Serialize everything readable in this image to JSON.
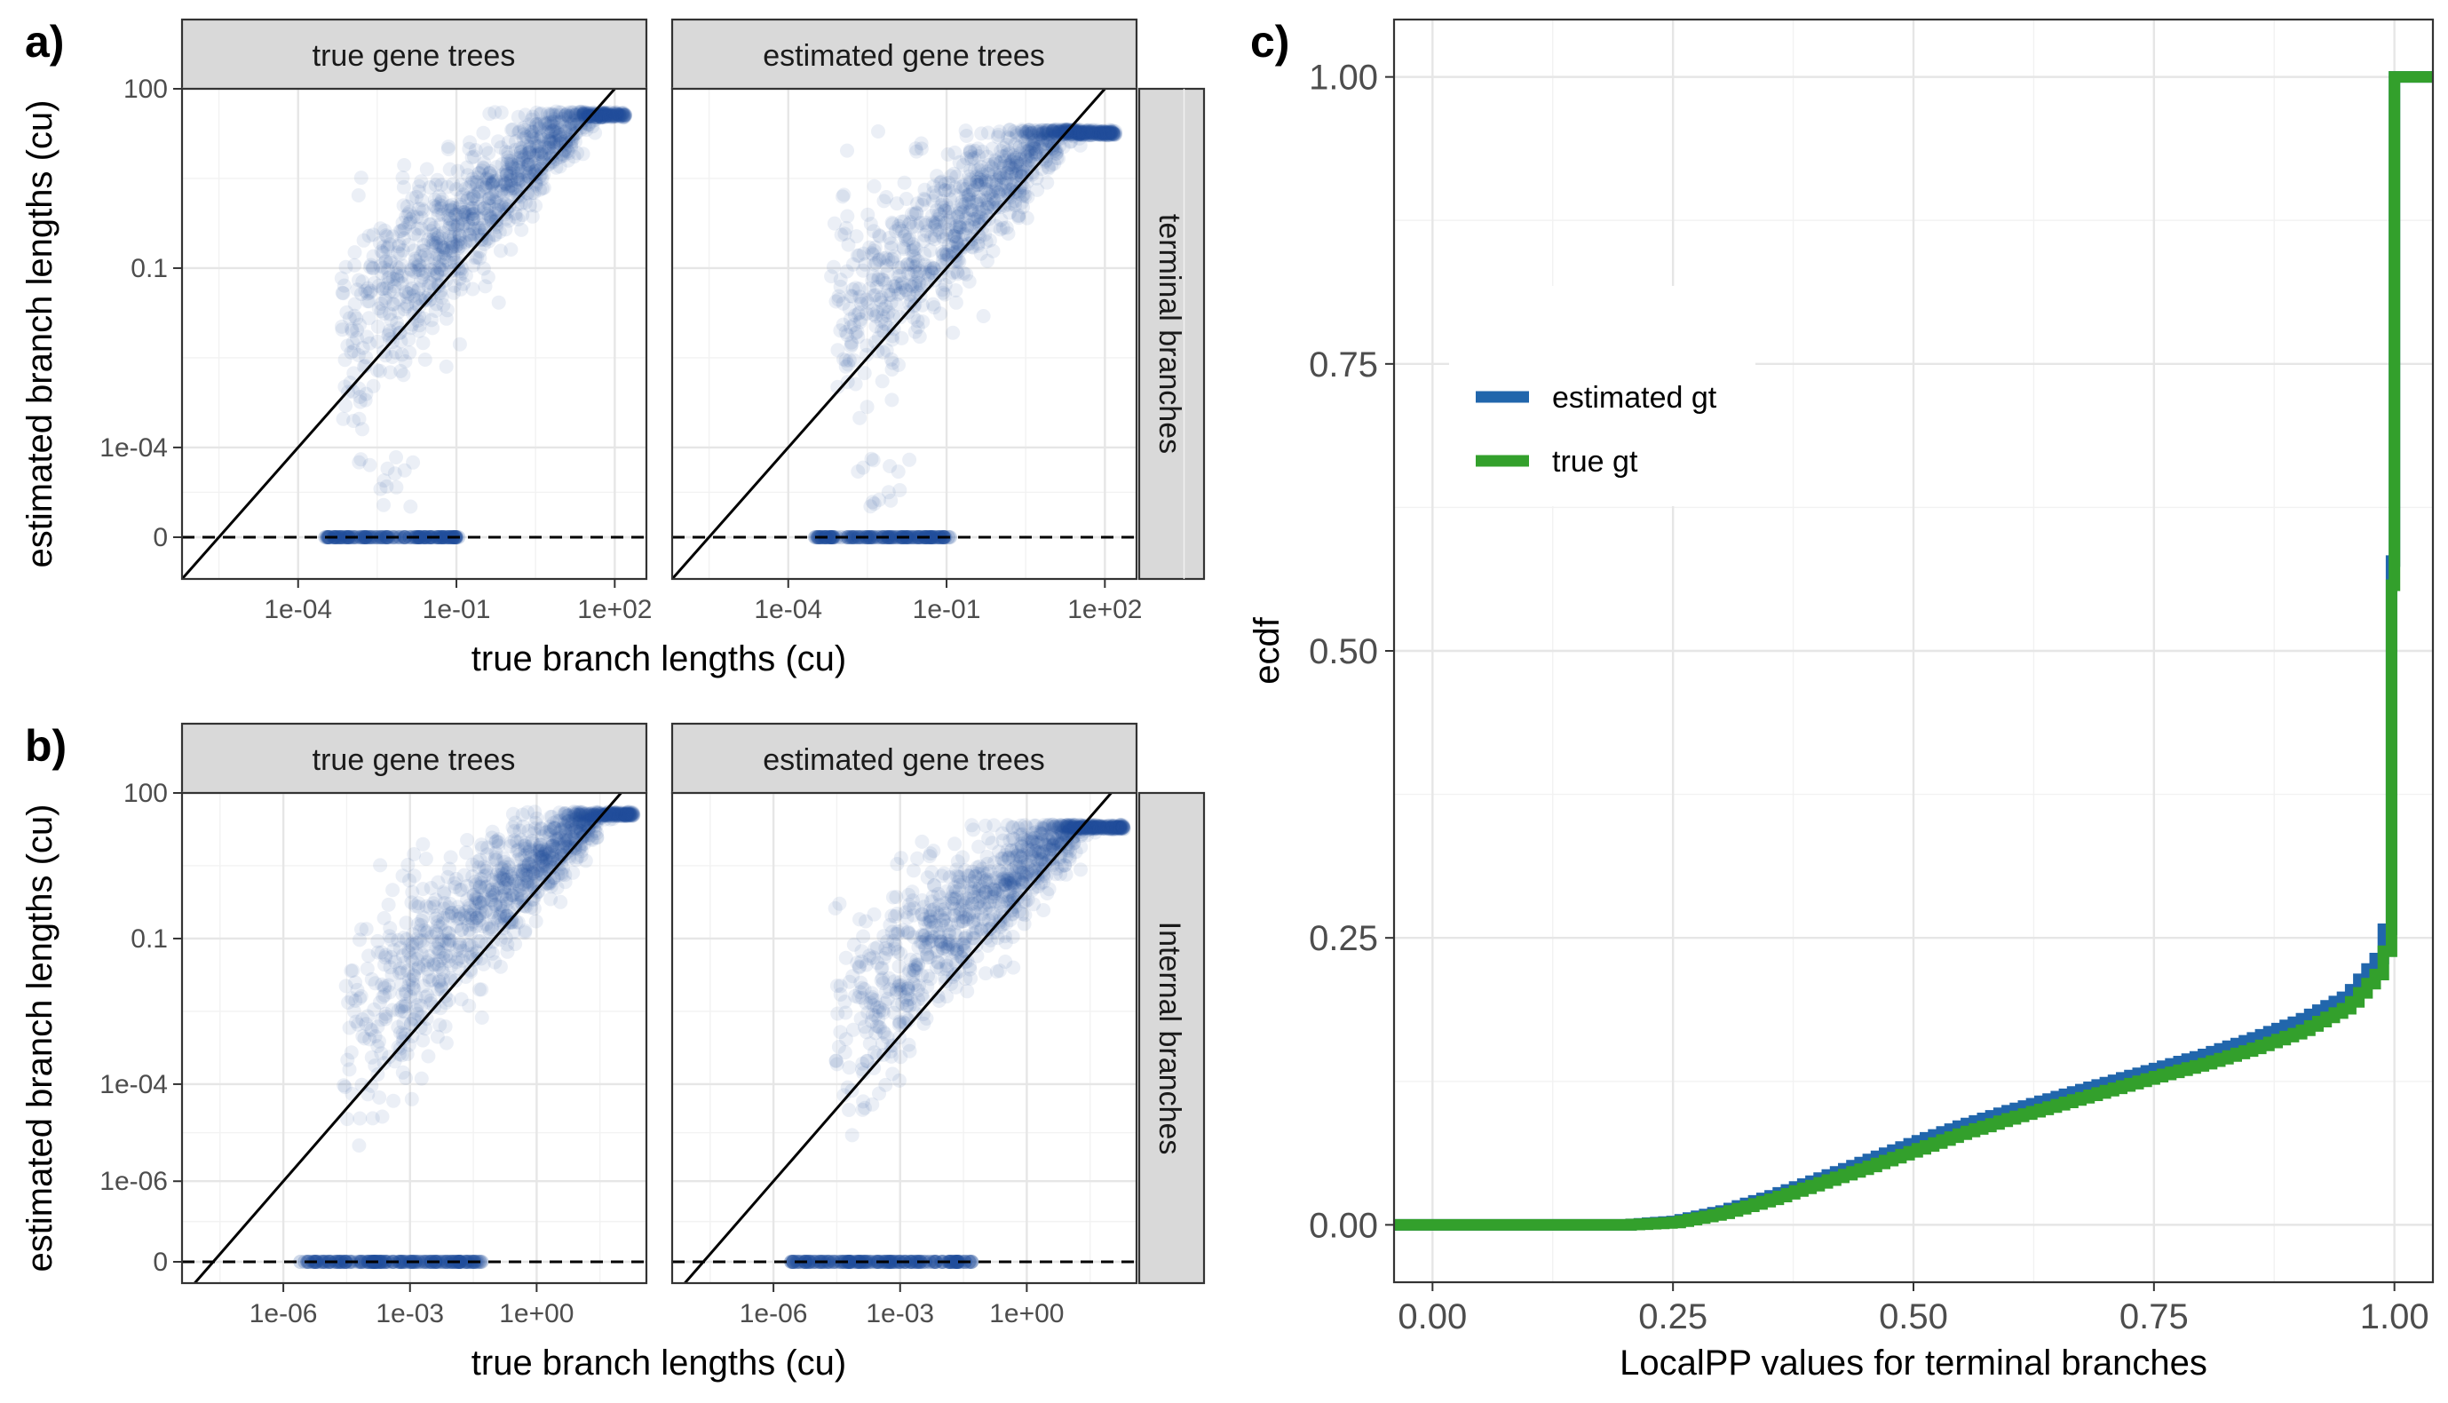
{
  "colors": {
    "points": "#1f4e9c",
    "estimated_gt": "#2166ac",
    "true_gt": "#33a02c",
    "strip": "#d9d9d9"
  },
  "panels": {
    "a": {
      "label": "a)",
      "strips": [
        "true gene trees",
        "estimated gene trees"
      ],
      "row_strip": "terminal branches",
      "xlabel": "true branch lengths (cu)",
      "ylabel": "estimated branch lengths (cu)"
    },
    "b": {
      "label": "b)",
      "strips": [
        "true gene trees",
        "estimated gene trees"
      ],
      "row_strip": "Internal branches",
      "xlabel": "true branch lengths (cu)",
      "ylabel": "estimated branch lengths (cu)"
    },
    "c": {
      "label": "c)",
      "xlabel": "LocalPP values for terminal branches",
      "ylabel": "ecdf"
    }
  },
  "chart_data": [
    {
      "id": "a",
      "type": "scatter",
      "scale": "log (pseudo-log with zero)",
      "facets": [
        "true gene trees",
        "estimated gene trees"
      ],
      "row_facet": "terminal branches",
      "x_ticks": [
        {
          "value": 0.0001,
          "label": "1e-04"
        },
        {
          "value": 0.1,
          "label": "1e-01"
        },
        {
          "value": 100,
          "label": "1e+02"
        }
      ],
      "y_ticks": [
        {
          "value": 0,
          "label": "0"
        },
        {
          "value": 0.0001,
          "label": "1e-04"
        },
        {
          "value": 0.1,
          "label": "0.1"
        },
        {
          "value": 100,
          "label": "100"
        }
      ],
      "xlim_log10": [
        -6.2,
        2.6
      ],
      "ylim_log10": [
        -6.2,
        2.0
      ],
      "reference_lines": [
        "y = x (solid)",
        "y = 0 (dashed)"
      ],
      "xlabel": "true branch lengths (cu)",
      "ylabel": "estimated branch lengths (cu)"
    },
    {
      "id": "b",
      "type": "scatter",
      "scale": "log (pseudo-log with zero)",
      "facets": [
        "true gene trees",
        "estimated gene trees"
      ],
      "row_facet": "Internal branches",
      "x_ticks": [
        {
          "value": 1e-06,
          "label": "1e-06"
        },
        {
          "value": 0.001,
          "label": "1e-03"
        },
        {
          "value": 1,
          "label": "1e+00"
        }
      ],
      "y_ticks": [
        {
          "value": 0,
          "label": "0"
        },
        {
          "value": 1e-06,
          "label": "1e-06"
        },
        {
          "value": 0.0001,
          "label": "1e-04"
        },
        {
          "value": 0.1,
          "label": "0.1"
        },
        {
          "value": 100,
          "label": "100"
        }
      ],
      "xlim_log10": [
        -8.4,
        2.6
      ],
      "ylim_log10": [
        -8.1,
        2.0
      ],
      "reference_lines": [
        "y = x (solid)",
        "y = 0 (dashed)"
      ],
      "xlabel": "true branch lengths (cu)",
      "ylabel": "estimated branch lengths (cu)"
    },
    {
      "id": "c",
      "type": "line",
      "xlabel": "LocalPP values for terminal branches",
      "ylabel": "ecdf",
      "xlim": [
        -0.04,
        1.04
      ],
      "ylim": [
        -0.05,
        1.05
      ],
      "x_ticks": [
        "0.00",
        "0.25",
        "0.50",
        "0.75",
        "1.00"
      ],
      "y_ticks": [
        "0.00",
        "0.25",
        "0.50",
        "0.75",
        "1.00"
      ],
      "legend_position": "left-upper",
      "series": [
        {
          "name": "estimated gt",
          "color": "#2166ac",
          "points": [
            [
              -0.04,
              0
            ],
            [
              0.2,
              0
            ],
            [
              0.25,
              0.003
            ],
            [
              0.3,
              0.012
            ],
            [
              0.35,
              0.025
            ],
            [
              0.4,
              0.04
            ],
            [
              0.45,
              0.056
            ],
            [
              0.5,
              0.072
            ],
            [
              0.55,
              0.087
            ],
            [
              0.6,
              0.1
            ],
            [
              0.65,
              0.112
            ],
            [
              0.7,
              0.124
            ],
            [
              0.75,
              0.136
            ],
            [
              0.8,
              0.148
            ],
            [
              0.85,
              0.162
            ],
            [
              0.9,
              0.178
            ],
            [
              0.95,
              0.2
            ],
            [
              0.98,
              0.232
            ],
            [
              0.99,
              0.262
            ],
            [
              0.995,
              0.297
            ],
            [
              1.0,
              1.0
            ],
            [
              1.04,
              1.0
            ]
          ]
        },
        {
          "name": "true gt",
          "color": "#33a02c",
          "points": [
            [
              -0.04,
              0
            ],
            [
              0.2,
              0
            ],
            [
              0.25,
              0.002
            ],
            [
              0.3,
              0.01
            ],
            [
              0.35,
              0.022
            ],
            [
              0.4,
              0.036
            ],
            [
              0.45,
              0.05
            ],
            [
              0.5,
              0.065
            ],
            [
              0.55,
              0.08
            ],
            [
              0.6,
              0.093
            ],
            [
              0.65,
              0.105
            ],
            [
              0.7,
              0.117
            ],
            [
              0.75,
              0.129
            ],
            [
              0.8,
              0.14
            ],
            [
              0.85,
              0.153
            ],
            [
              0.9,
              0.168
            ],
            [
              0.95,
              0.19
            ],
            [
              0.98,
              0.218
            ],
            [
              0.99,
              0.242
            ],
            [
              0.995,
              0.262
            ],
            [
              1.0,
              1.0
            ],
            [
              1.04,
              1.0
            ]
          ]
        }
      ]
    }
  ]
}
